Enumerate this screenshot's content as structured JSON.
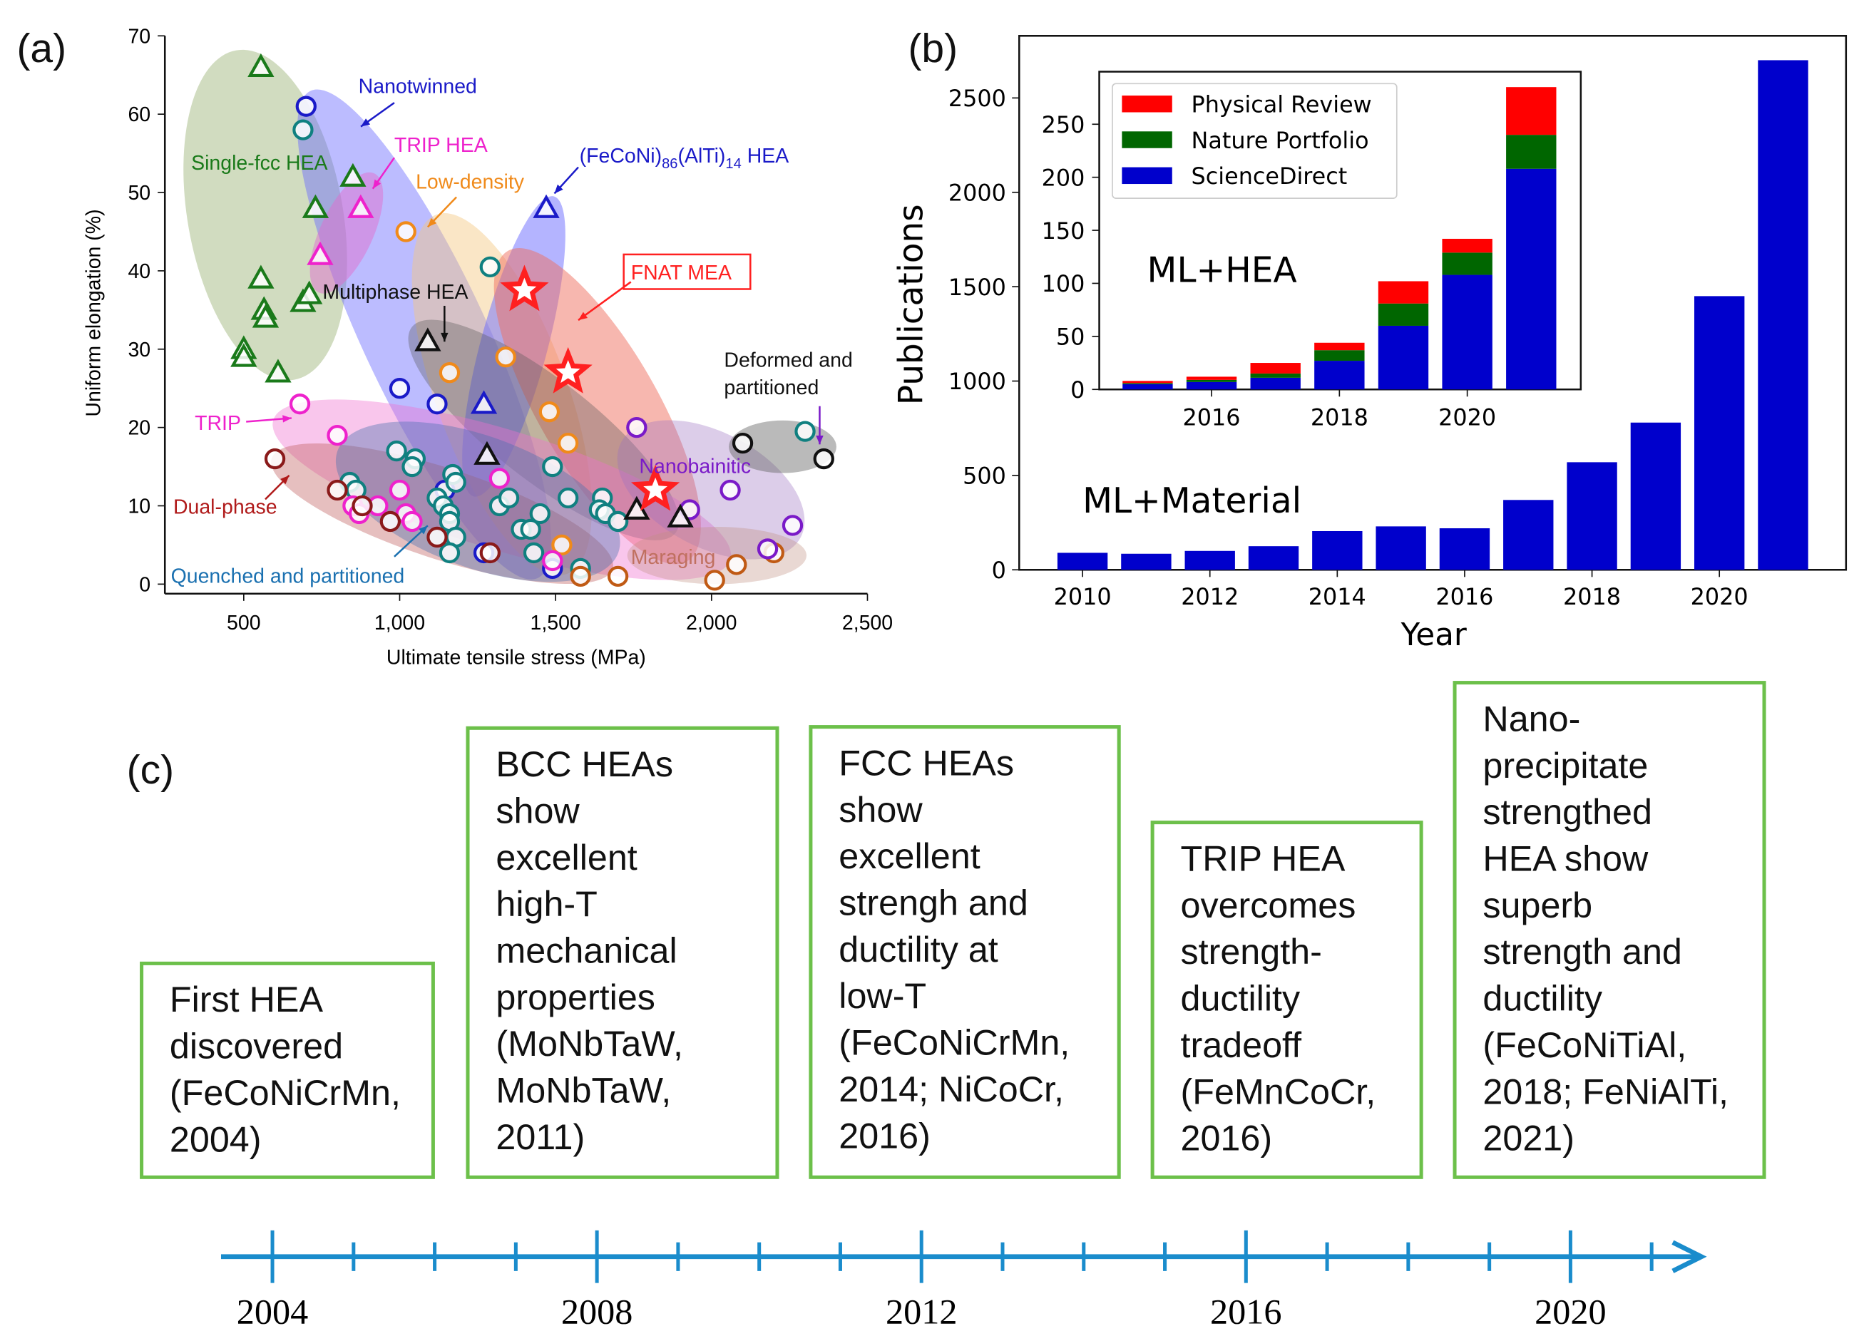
{
  "panels": {
    "a": "(a)",
    "b": "(b)",
    "c": "(c)"
  },
  "chart_data": [
    {
      "type": "scatter",
      "title": "",
      "xlabel": "Ultimate tensile stress (MPa)",
      "ylabel": "Uniform elongation (%)",
      "xlim": [
        250,
        2500
      ],
      "ylim": [
        0,
        70
      ],
      "xticks": [
        "500",
        "1,000",
        "1,500",
        "2,000",
        "2,500"
      ],
      "xtick_values": [
        500,
        1000,
        1500,
        2000,
        2500
      ],
      "yticks": [
        "0",
        "10",
        "20",
        "30",
        "40",
        "50",
        "60",
        "70"
      ],
      "ytick_values": [
        0,
        10,
        20,
        30,
        40,
        50,
        60,
        70
      ],
      "annotations": [
        "Nanotwinned",
        "TRIP HEA",
        "Single-fcc HEA",
        "Low-density",
        "(FeCoNi)86(AlTi)14 HEA",
        "FNAT MEA",
        "Multiphase HEA",
        "Deformed and",
        "partitioned",
        "TRIP",
        "Nanobainitic",
        "Dual-phase",
        "Maraging",
        "Quenched and partitioned"
      ],
      "series": [
        {
          "name": "Single-fcc HEA",
          "marker": "triangle",
          "color": "#1a7a1a",
          "points": [
            [
              555,
              66
            ],
            [
              850,
              52
            ],
            [
              730,
              48
            ],
            [
              555,
              39
            ],
            [
              565,
              35
            ],
            [
              570,
              34
            ],
            [
              500,
              30
            ],
            [
              500,
              29
            ],
            [
              610,
              27
            ],
            [
              690,
              36
            ],
            [
              710,
              37
            ]
          ]
        },
        {
          "name": "TRIP HEA",
          "marker": "triangle",
          "color": "#ee22cc",
          "points": [
            [
              875,
              48
            ],
            [
              745,
              42
            ]
          ]
        },
        {
          "name": "Nanotwinned",
          "marker": "circle",
          "color": "#1a1ac8",
          "points": [
            [
              700,
              61
            ],
            [
              1000,
              25
            ],
            [
              1120,
              23
            ],
            [
              1145,
              12
            ],
            [
              1270,
              4
            ],
            [
              1490,
              2
            ]
          ]
        },
        {
          "name": "Quenched and partitioned",
          "marker": "circle",
          "color": "#108080",
          "points": [
            [
              690,
              58
            ],
            [
              1290,
              40.5
            ],
            [
              990,
              17
            ],
            [
              1050,
              16
            ],
            [
              1040,
              15
            ],
            [
              840,
              13
            ],
            [
              860,
              12
            ],
            [
              1170,
              14
            ],
            [
              1180,
              13
            ],
            [
              1120,
              11
            ],
            [
              1140,
              10
            ],
            [
              1160,
              9
            ],
            [
              1160,
              8
            ],
            [
              1180,
              6
            ],
            [
              1160,
              4
            ],
            [
              1320,
              10
            ],
            [
              1350,
              11
            ],
            [
              1390,
              7
            ],
            [
              1420,
              7
            ],
            [
              1450,
              9
            ],
            [
              1430,
              4
            ],
            [
              1490,
              15
            ],
            [
              1540,
              11
            ],
            [
              1650,
              11
            ],
            [
              1640,
              9.5
            ],
            [
              1660,
              9
            ],
            [
              1700,
              8
            ],
            [
              1580,
              2
            ],
            [
              2300,
              19.5
            ]
          ]
        },
        {
          "name": "Low-density",
          "marker": "circle",
          "color": "#f08a1a",
          "points": [
            [
              1020,
              45
            ],
            [
              1160,
              27
            ],
            [
              1340,
              29
            ],
            [
              1480,
              22
            ],
            [
              1540,
              18
            ],
            [
              1520,
              5
            ]
          ]
        },
        {
          "name": "TRIP",
          "marker": "circle",
          "color": "#ee22cc",
          "points": [
            [
              680,
              23
            ],
            [
              800,
              19
            ],
            [
              850,
              10
            ],
            [
              870,
              9
            ],
            [
              930,
              10
            ],
            [
              1000,
              12
            ],
            [
              1020,
              9
            ],
            [
              1040,
              8
            ],
            [
              1320,
              13.5
            ],
            [
              1490,
              3
            ]
          ]
        },
        {
          "name": "Dual-phase",
          "marker": "circle",
          "color": "#8a1a1a",
          "points": [
            [
              600,
              16
            ],
            [
              800,
              12
            ],
            [
              880,
              10
            ],
            [
              970,
              8
            ],
            [
              1120,
              6
            ],
            [
              1290,
              4
            ]
          ]
        },
        {
          "name": "Maraging",
          "marker": "circle",
          "color": "#c05a14",
          "points": [
            [
              1580,
              1
            ],
            [
              1700,
              1
            ],
            [
              2010,
              0.5
            ],
            [
              2080,
              2.5
            ],
            [
              2200,
              4
            ]
          ]
        },
        {
          "name": "Nanobainitic",
          "marker": "circle",
          "color": "#7a1ac8",
          "points": [
            [
              1760,
              20
            ],
            [
              2060,
              12
            ],
            [
              1930,
              9.5
            ],
            [
              2260,
              7.5
            ],
            [
              2180,
              4.5
            ]
          ]
        },
        {
          "name": "Deformed and partitioned",
          "marker": "circle",
          "color": "#111111",
          "points": [
            [
              2100,
              18
            ],
            [
              2360,
              16
            ]
          ]
        },
        {
          "name": "Multiphase HEA",
          "marker": "triangle",
          "color": "#111111",
          "points": [
            [
              1090,
              31
            ],
            [
              1280,
              16.5
            ],
            [
              1760,
              9.5
            ],
            [
              1900,
              8.5
            ]
          ]
        },
        {
          "name": "(FeCoNi)86(AlTi)14 HEA",
          "marker": "triangle",
          "color": "#1a1ac8",
          "points": [
            [
              1270,
              23
            ],
            [
              1470,
              48
            ]
          ]
        },
        {
          "name": "FNAT MEA",
          "marker": "star",
          "color": "#ff2020",
          "points": [
            [
              1400,
              37.5
            ],
            [
              1540,
              27
            ],
            [
              1820,
              12
            ]
          ]
        }
      ]
    },
    {
      "type": "bar",
      "title": "ML+Material",
      "xlabel": "Year",
      "ylabel": "Publications",
      "categories": [
        2010,
        2011,
        2012,
        2013,
        2014,
        2015,
        2016,
        2017,
        2018,
        2019,
        2020,
        2021
      ],
      "values": [
        90,
        85,
        100,
        125,
        205,
        230,
        220,
        370,
        570,
        780,
        1450,
        2700
      ],
      "xticks": [
        "2010",
        "2012",
        "2014",
        "2016",
        "2018",
        "2020"
      ],
      "yticks": [
        "0",
        "500",
        "1000",
        "1500",
        "2000",
        "2500"
      ],
      "ylim": [
        0,
        2850
      ],
      "color": "#0000cc"
    },
    {
      "type": "bar",
      "stacked": true,
      "title": "ML+HEA",
      "categories": [
        2015,
        2016,
        2017,
        2018,
        2019,
        2020,
        2021
      ],
      "xticks": [
        "2016",
        "2018",
        "2020"
      ],
      "yticks": [
        "0",
        "50",
        "100",
        "150",
        "200",
        "250"
      ],
      "ylim": [
        0,
        300
      ],
      "legend_position": "top-left",
      "series": [
        {
          "name": "ScienceDirect",
          "color": "#0000cc",
          "values": [
            5,
            7,
            11,
            27,
            60,
            108,
            208
          ]
        },
        {
          "name": "Nature Portfolio",
          "color": "#006600",
          "values": [
            1,
            2,
            4,
            10,
            21,
            21,
            32
          ]
        },
        {
          "name": "Physical Review",
          "color": "#ff0000",
          "values": [
            2,
            3,
            10,
            7,
            21,
            13,
            45
          ]
        }
      ],
      "legend": [
        "Physical Review",
        "Nature Portfolio",
        "ScienceDirect"
      ]
    },
    {
      "type": "timeline",
      "years": [
        "2004",
        "2008",
        "2012",
        "2016",
        "2020"
      ],
      "start_year": 2004,
      "end_year": 2021,
      "color": "#1a8ccc",
      "events": [
        {
          "year": 2004,
          "lines": [
            "First HEA",
            "discovered",
            "(FeCoNiCrMn,",
            "2004)"
          ]
        },
        {
          "year": 2011,
          "lines": [
            "BCC HEAs",
            "show",
            "excellent",
            "high-T",
            "mechanical",
            "properties",
            "(MoNbTaW,",
            "MoNbTaW,",
            "2011)"
          ]
        },
        {
          "year": 2014,
          "lines": [
            "FCC HEAs",
            "show",
            "excellent",
            "strengh and",
            "ductility at",
            "low-T",
            "(FeCoNiCrMn,",
            "2014; NiCoCr,",
            "2016)"
          ]
        },
        {
          "year": 2016,
          "lines": [
            "TRIP HEA",
            "overcomes",
            "strength-",
            "ductility",
            "tradeoff",
            "(FeMnCoCr,",
            "2016)"
          ]
        },
        {
          "year": 2021,
          "lines": [
            "Nano-",
            "precipitate",
            "strengthed",
            "HEA show",
            "superb",
            "strength and",
            "ductility",
            "(FeCoNiTiAl,",
            "2018; FeNiAlTi,",
            "2021)"
          ]
        }
      ]
    }
  ]
}
